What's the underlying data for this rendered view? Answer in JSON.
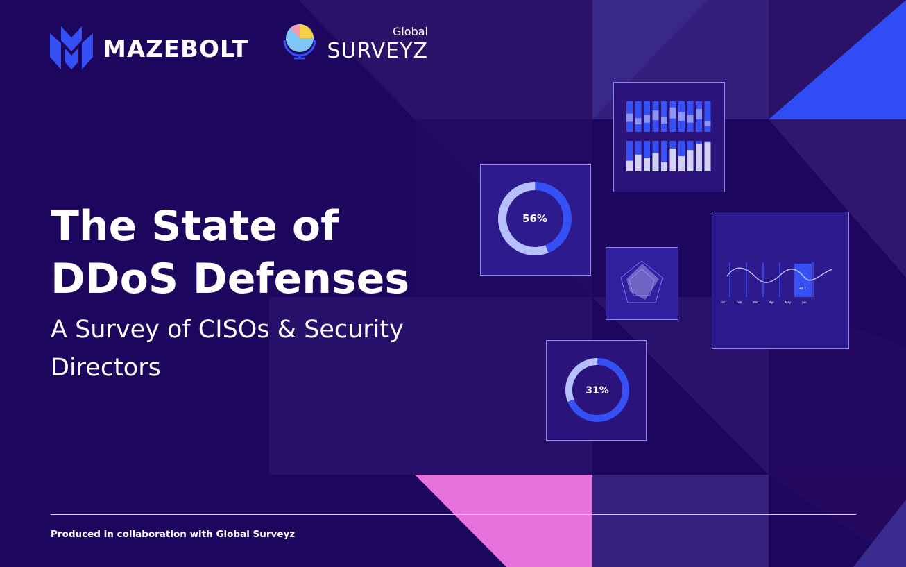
{
  "header": {
    "logo_1": "MAZEBOLT",
    "logo_2_small": "Global",
    "logo_2": "SURVEYZ"
  },
  "title": [
    "The State of",
    "DDoS Defenses"
  ],
  "subtitle": [
    "A Survey of CISOs & Security",
    "Directors"
  ],
  "widgets": {
    "donut_1": "56%",
    "donut_2": "31%",
    "line_chart": {
      "highlight": "467",
      "months": [
        "Jan",
        "Feb",
        "Mar",
        "Apr",
        "May",
        "Jun"
      ]
    }
  },
  "footer": "Produced in collaboration with Global Surveyz"
}
